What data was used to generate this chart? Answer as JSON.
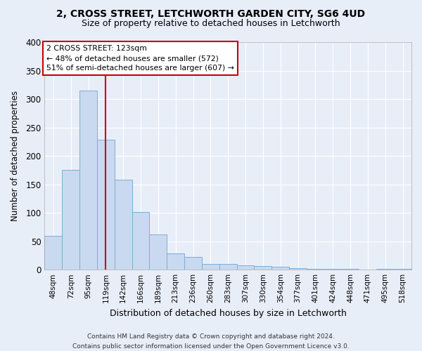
{
  "title1": "2, CROSS STREET, LETCHWORTH GARDEN CITY, SG6 4UD",
  "title2": "Size of property relative to detached houses in Letchworth",
  "xlabel": "Distribution of detached houses by size in Letchworth",
  "ylabel": "Number of detached properties",
  "categories": [
    "48sqm",
    "72sqm",
    "95sqm",
    "119sqm",
    "142sqm",
    "166sqm",
    "189sqm",
    "213sqm",
    "236sqm",
    "260sqm",
    "283sqm",
    "307sqm",
    "330sqm",
    "354sqm",
    "377sqm",
    "401sqm",
    "424sqm",
    "448sqm",
    "471sqm",
    "495sqm",
    "518sqm"
  ],
  "values": [
    60,
    175,
    315,
    228,
    158,
    102,
    62,
    28,
    22,
    10,
    10,
    8,
    6,
    5,
    3,
    2,
    1,
    1,
    0,
    1,
    2
  ],
  "bar_color": "#c9d9f0",
  "bar_edge_color": "#7bafd4",
  "annotation_text_line1": "2 CROSS STREET: 123sqm",
  "annotation_text_line2": "← 48% of detached houses are smaller (572)",
  "annotation_text_line3": "51% of semi-detached houses are larger (607) →",
  "annotation_box_color": "#ffffff",
  "annotation_box_edge": "#cc0000",
  "vline_color": "#cc0000",
  "vline_x": 3.0,
  "footer": "Contains HM Land Registry data © Crown copyright and database right 2024.\nContains public sector information licensed under the Open Government Licence v3.0.",
  "background_color": "#e8eef8",
  "plot_bg_color": "#e8eef8",
  "grid_color": "#ffffff",
  "ylim": [
    0,
    400
  ],
  "yticks": [
    0,
    50,
    100,
    150,
    200,
    250,
    300,
    350,
    400
  ]
}
